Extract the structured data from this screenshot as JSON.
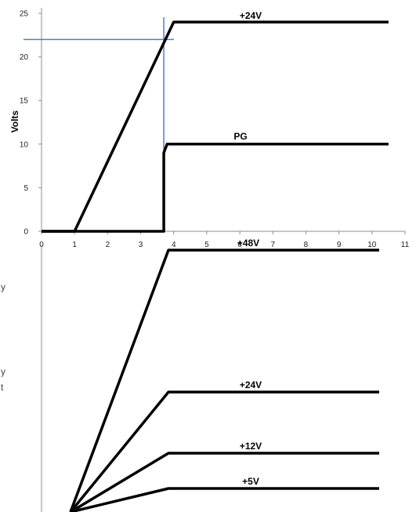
{
  "colors": {
    "series": "#000000",
    "axis": "#8c8c8c",
    "marker": "#4f81bd",
    "cut_text": "#444444"
  },
  "side_text_fragments": [
    "y",
    "y",
    "t"
  ],
  "chart_data": [
    {
      "type": "line",
      "title": "",
      "xlabel": "",
      "ylabel": "Volts",
      "xlim": [
        0,
        11
      ],
      "ylim": [
        0,
        25
      ],
      "xticks": [
        0,
        1,
        2,
        3,
        4,
        5,
        6,
        7,
        8,
        9,
        10,
        11
      ],
      "yticks": [
        0,
        5,
        10,
        15,
        20,
        25
      ],
      "grid": false,
      "legend": "none",
      "series": [
        {
          "name": "+24V",
          "x": [
            0,
            1,
            4,
            10.5
          ],
          "y": [
            0,
            0,
            24,
            24
          ]
        },
        {
          "name": "PG",
          "x": [
            0,
            3.7,
            3.7,
            3.8,
            10.5
          ],
          "y": [
            0,
            0,
            9,
            10,
            10
          ]
        }
      ],
      "annotations": {
        "crosshair_x": 3.7,
        "crosshair_y": 22
      }
    },
    {
      "type": "line",
      "title": "",
      "xlabel": "",
      "ylabel": "",
      "xlim": [
        0,
        10
      ],
      "ylim": [
        0,
        48
      ],
      "grid": false,
      "legend": "none",
      "axis_labels_shown": false,
      "series": [
        {
          "name": "+48V",
          "x": [
            0,
            3,
            10
          ],
          "y": [
            0,
            48,
            48
          ]
        },
        {
          "name": "+24V",
          "x": [
            0,
            3,
            10
          ],
          "y": [
            0,
            24,
            24
          ]
        },
        {
          "name": "+12V",
          "x": [
            0,
            3,
            10
          ],
          "y": [
            0,
            12,
            12
          ]
        },
        {
          "name": "+5V",
          "x": [
            0,
            3,
            10
          ],
          "y": [
            0,
            5,
            5
          ]
        }
      ]
    }
  ]
}
